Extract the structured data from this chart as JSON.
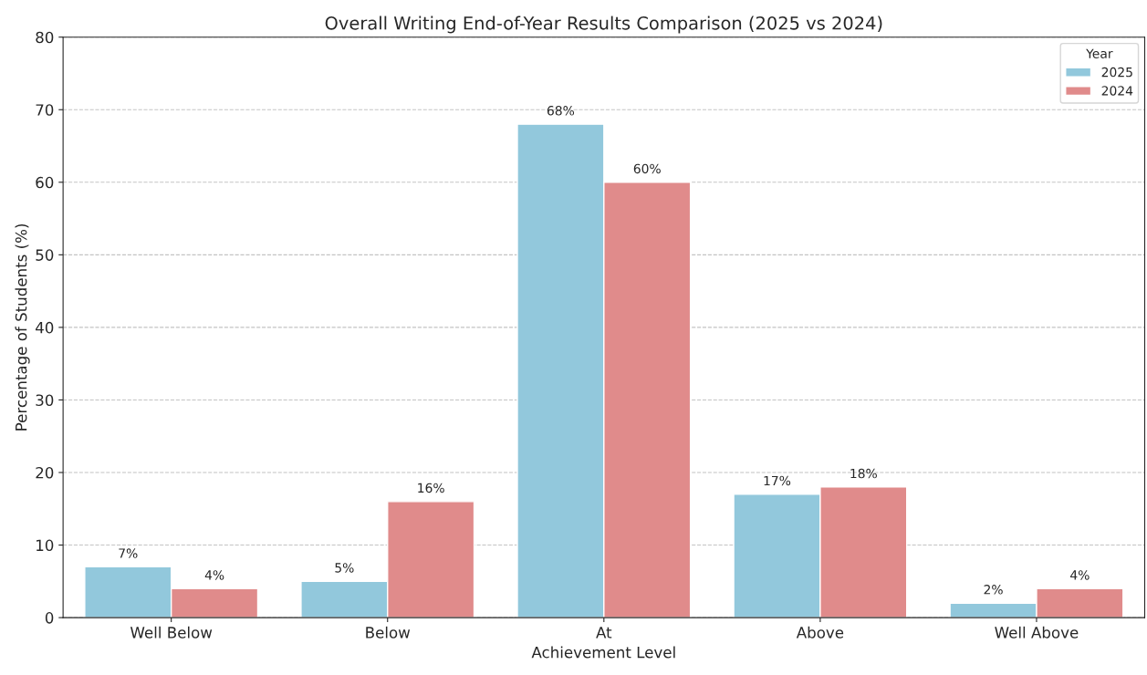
{
  "chart_data": {
    "type": "bar",
    "title": "Overall Writing End-of-Year Results Comparison (2025 vs 2024)",
    "xlabel": "Achievement Level",
    "ylabel": "Percentage of Students (%)",
    "legend_title": "Year",
    "categories": [
      "Well Below",
      "Below",
      "At",
      "Above",
      "Well Above"
    ],
    "series": [
      {
        "name": "2025",
        "color": "#92c8dc",
        "values": [
          7,
          5,
          68,
          17,
          2
        ],
        "value_labels": [
          "7%",
          "5%",
          "68%",
          "17%",
          "2%"
        ]
      },
      {
        "name": "2024",
        "color": "#e08b8b",
        "values": [
          4,
          16,
          60,
          18,
          4
        ],
        "value_labels": [
          "4%",
          "16%",
          "60%",
          "18%",
          "4%"
        ]
      }
    ],
    "ylim": [
      0,
      80
    ],
    "yticks": [
      0,
      10,
      20,
      30,
      40,
      50,
      60,
      70,
      80
    ],
    "grid": "y",
    "line_style": "dashed",
    "legend": "top right"
  }
}
